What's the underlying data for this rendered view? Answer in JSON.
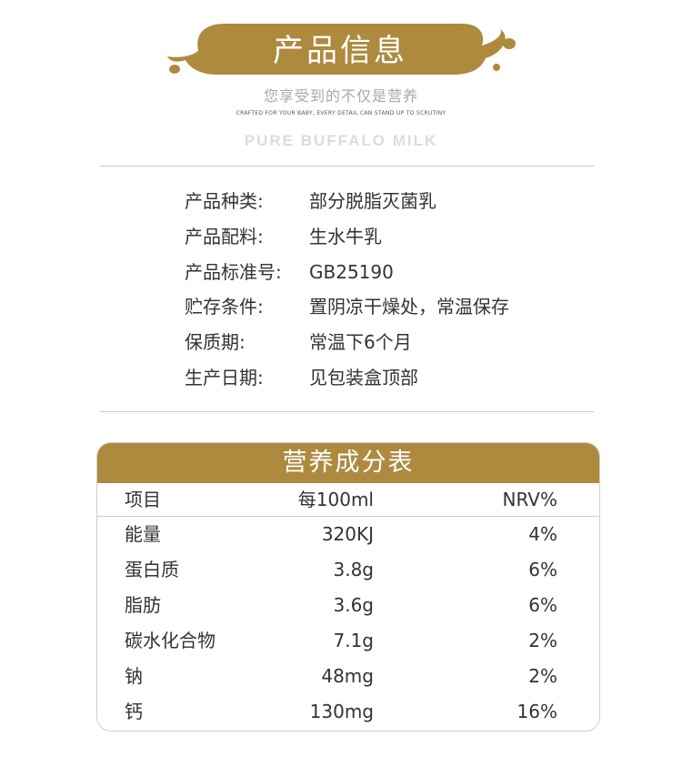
{
  "header": {
    "title": "产品信息",
    "subtitle": "您享受到的不仅是营养",
    "tagline": "CRAFTED FOR YOUR BABY, EVERY DETAIL CAN STAND UP TO SCRUTINY",
    "brand_line": "PURE BUFFALO MILK",
    "banner_color": "#ad8a3e"
  },
  "info": [
    {
      "label": "产品种类:",
      "value": "部分脱脂灭菌乳"
    },
    {
      "label": "产品配料:",
      "value": "生水牛乳"
    },
    {
      "label": "产品标准号:",
      "value": "GB25190"
    },
    {
      "label": "贮存条件:",
      "value": "置阴凉干燥处，常温保存"
    },
    {
      "label": "保质期:",
      "value": "常温下6个月"
    },
    {
      "label": "生产日期:",
      "value": "见包装盒顶部"
    }
  ],
  "nutrition": {
    "title": "营养成分表",
    "columns": [
      "项目",
      "每100ml",
      "NRV%"
    ],
    "rows": [
      [
        "能量",
        "320KJ",
        "4%"
      ],
      [
        "蛋白质",
        "3.8g",
        "6%"
      ],
      [
        "脂肪",
        "3.6g",
        "6%"
      ],
      [
        "碳水化合物",
        "7.1g",
        "2%"
      ],
      [
        "钠",
        "48mg",
        "2%"
      ],
      [
        "钙",
        "130mg",
        "16%"
      ]
    ]
  }
}
